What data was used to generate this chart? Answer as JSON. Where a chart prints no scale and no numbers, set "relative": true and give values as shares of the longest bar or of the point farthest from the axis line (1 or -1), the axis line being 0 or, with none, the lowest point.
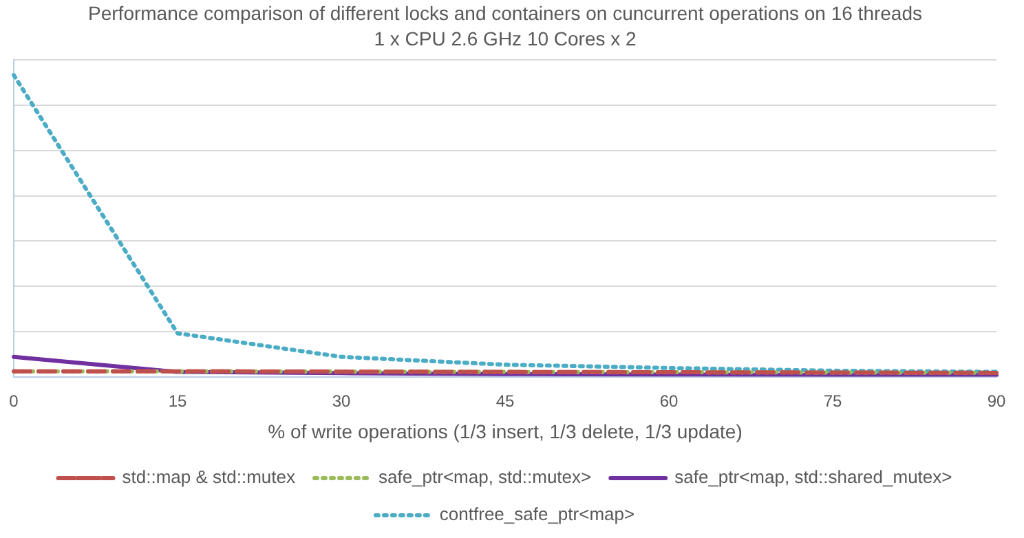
{
  "chart_data": {
    "type": "line",
    "title": "Performance comparison of different locks and containers on cuncurrent operations on 16 threads",
    "subtitle": "1 x CPU 2.6 GHz 10 Cores x 2",
    "xlabel": "% of write operations (1/3 insert, 1/3 delete, 1/3 update)",
    "categories": [
      "0",
      "15",
      "30",
      "45",
      "60",
      "75",
      "90"
    ],
    "relative": true,
    "grid": "y",
    "legend": "bottom",
    "marker": "none",
    "series": [
      {
        "name": "std::map & std::mutex",
        "color": "#c0504d",
        "line_style": "dashed",
        "values": [
          0.018,
          0.018,
          0.017,
          0.016,
          0.015,
          0.014,
          0.013
        ]
      },
      {
        "name": "safe_ptr<map, std::mutex>",
        "color": "#9bbb59",
        "line_style": "dotted",
        "values": [
          0.018,
          0.018,
          0.017,
          0.016,
          0.015,
          0.014,
          0.013
        ]
      },
      {
        "name": "safe_ptr<map, std::shared_mutex>",
        "color": "#7030a0",
        "line_style": "solid",
        "values": [
          0.066,
          0.016,
          0.012,
          0.009,
          0.007,
          0.006,
          0.004
        ]
      },
      {
        "name": "contfree_safe_ptr<map>",
        "color": "#4bacc6",
        "line_style": "dotted",
        "values": [
          1,
          0.144,
          0.066,
          0.04,
          0.029,
          0.02,
          0.016
        ]
      }
    ]
  }
}
